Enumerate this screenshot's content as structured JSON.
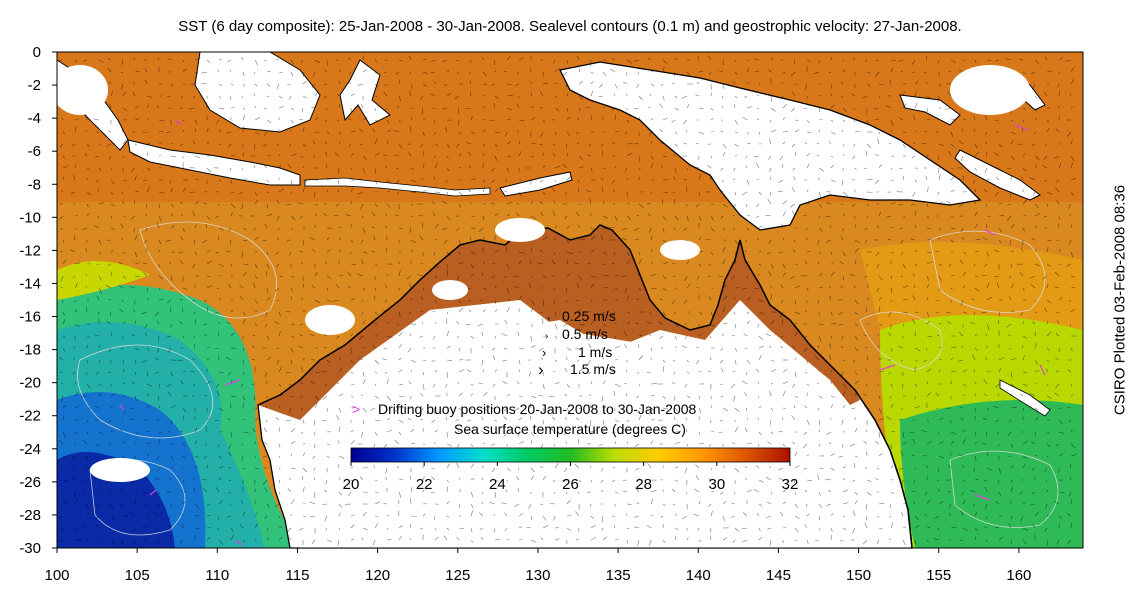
{
  "title": "SST (6 day composite): 25-Jan-2008 - 30-Jan-2008. Sealevel contours (0.1 m) and geostrophic velocity: 27-Jan-2008.",
  "side_label": "CSIRO Plotted 03-Feb-2008 08:36",
  "velocity_legend": [
    "0.25 m/s",
    "0.5 m/s",
    "1 m/s",
    "1.5 m/s"
  ],
  "velocity_values": [
    0.25,
    0.5,
    1,
    1.5
  ],
  "buoy_legend": {
    "marker": ">",
    "marker_color": "#e040e0",
    "label": "Drifting buoy positions 20-Jan-2008 to 30-Jan-2008"
  },
  "colorbar": {
    "title": "Sea surface temperature (degrees C)",
    "min": 20,
    "max": 32,
    "tick_labels": [
      "20",
      "22",
      "24",
      "26",
      "28",
      "30",
      "32"
    ],
    "colors": [
      "#00008f",
      "#0033cc",
      "#0099ff",
      "#00ddcc",
      "#00cc66",
      "#22bb22",
      "#bbdd00",
      "#ffcc00",
      "#ff9900",
      "#dd5500",
      "#aa1100"
    ]
  },
  "map": {
    "lon_range": [
      100,
      164
    ],
    "lat_range": [
      -30,
      0
    ],
    "x_tick_labels": [
      "100",
      "105",
      "110",
      "115",
      "120",
      "125",
      "130",
      "135",
      "140",
      "145",
      "150",
      "155",
      "160"
    ],
    "y_tick_labels": [
      "0",
      "-2",
      "-4",
      "-6",
      "-8",
      "-10",
      "-12",
      "-14",
      "-16",
      "-18",
      "-20",
      "-22",
      "-24",
      "-26",
      "-28",
      "-30"
    ],
    "land_color": "#ffffff",
    "land_sst_color": "#c86a22",
    "coast_color": "#000000",
    "contour_color": "#dddddd",
    "missing_color": "#ffffff"
  }
}
